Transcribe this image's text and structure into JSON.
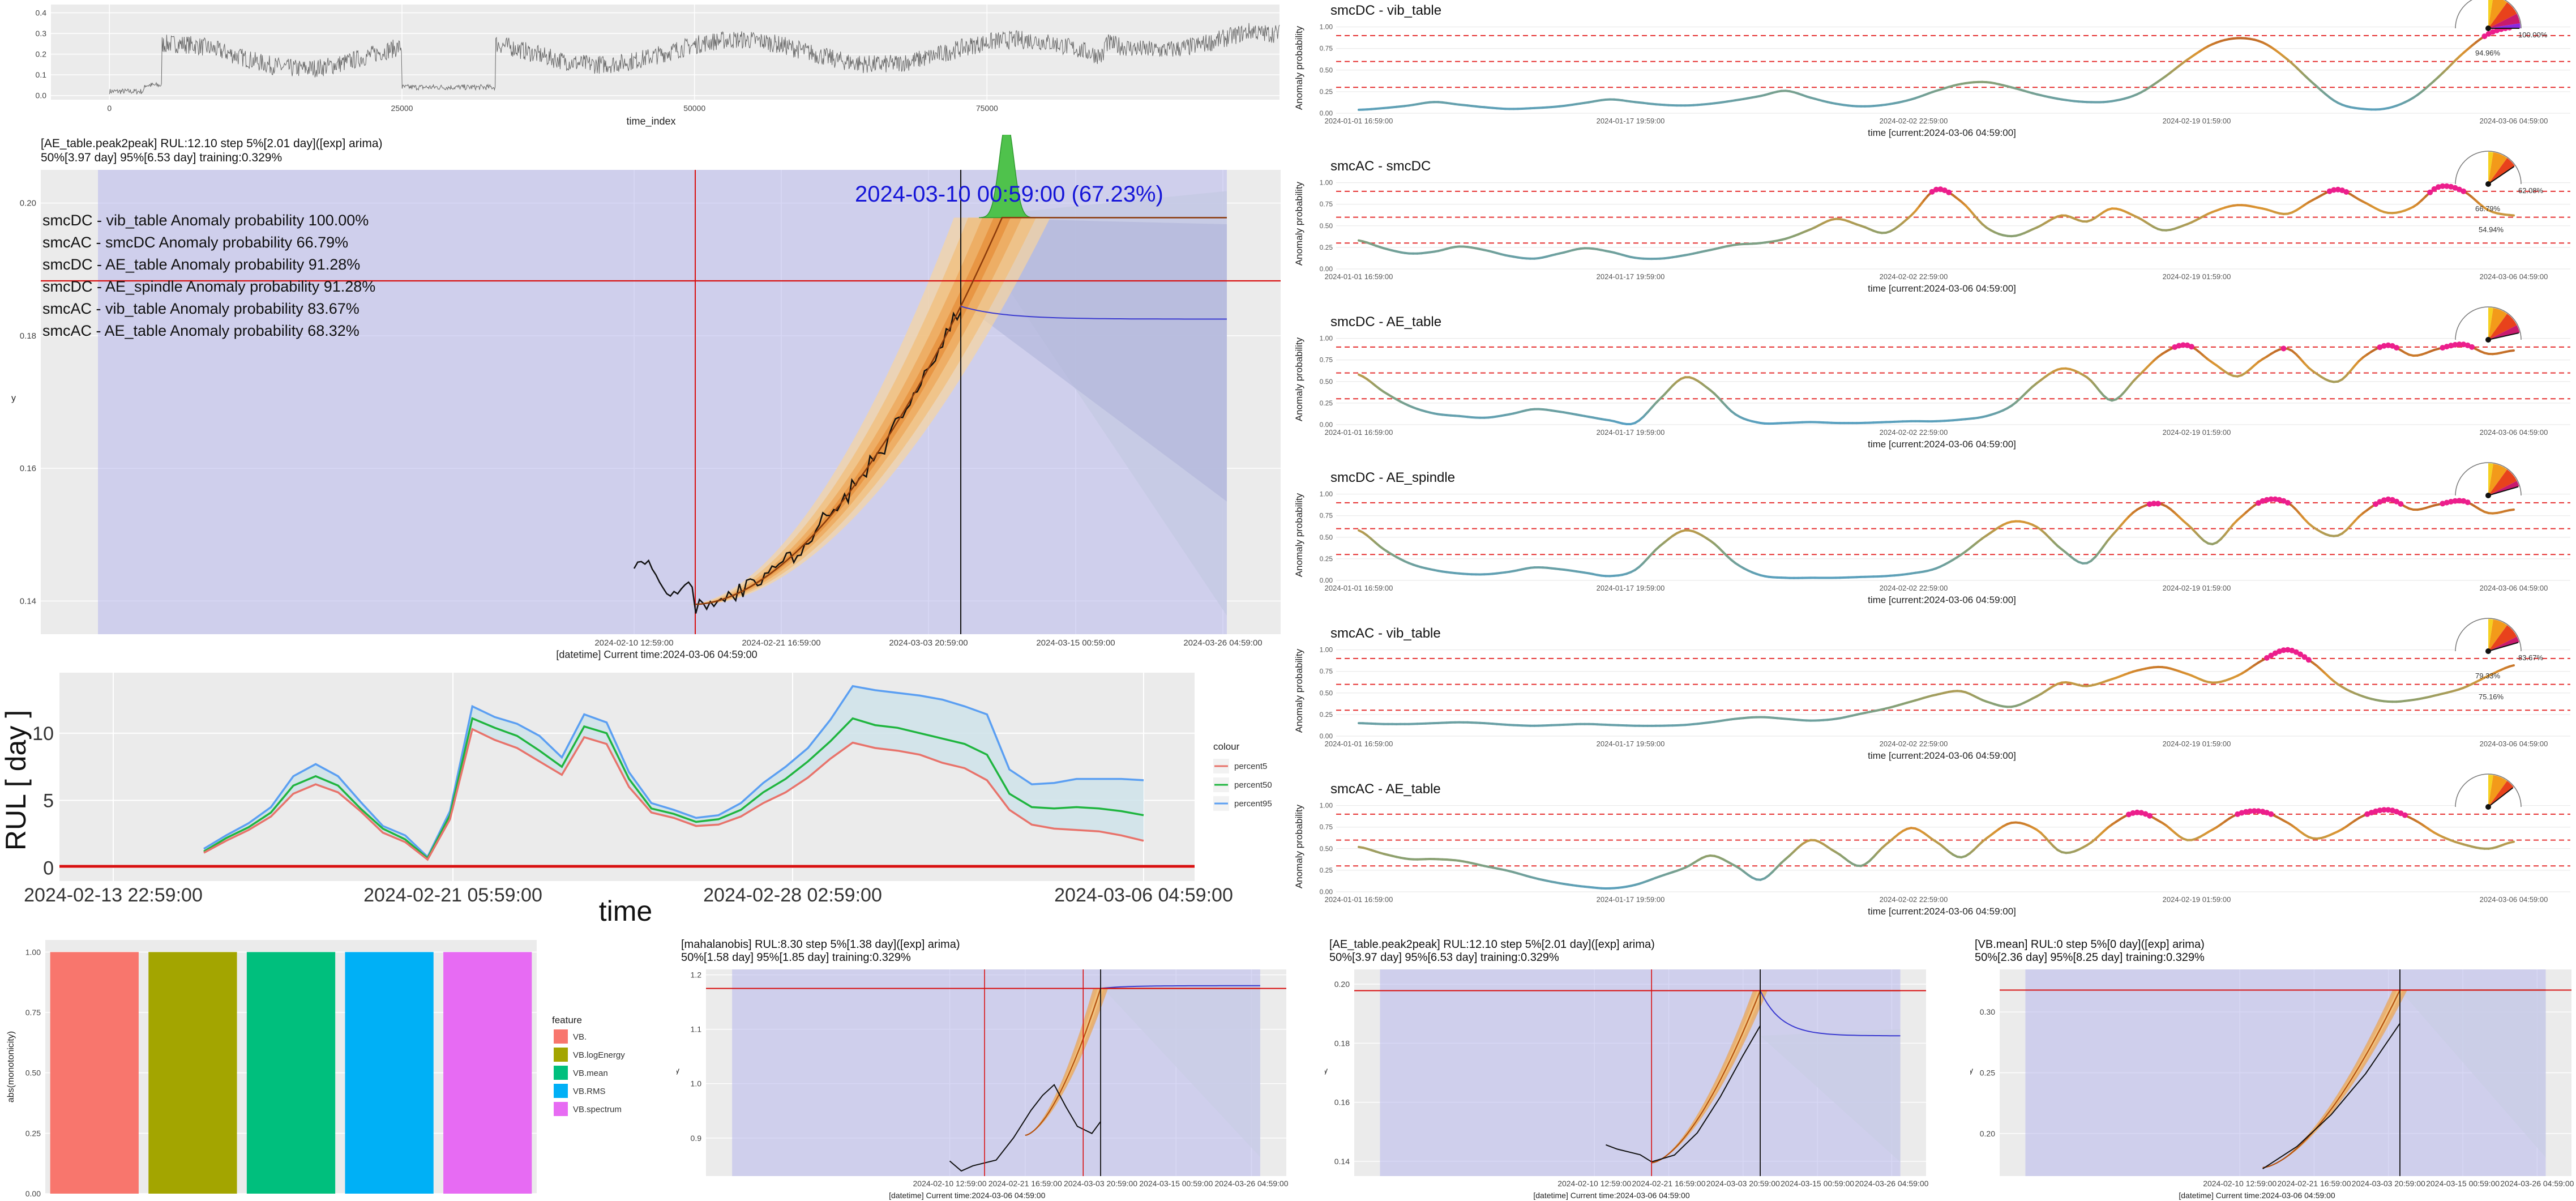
{
  "top_strip": {
    "xlabel": "time_index",
    "xticks": [
      0,
      25000,
      50000,
      75000
    ],
    "yticks": [
      "0.0",
      "0.1",
      "0.2",
      "0.3",
      "0.4"
    ],
    "xlim": [
      -5000,
      100000
    ],
    "ylim": [
      -0.02,
      0.44
    ]
  },
  "main_forecast": {
    "title_line1": "[AE_table.peak2peak] RUL:12.10 step 5%[2.01 day]([exp] arima)",
    "title_line2": "50%[3.97 day] 95%[6.53 day] training:0.329%",
    "big_label": "2024-03-10 00:59:00 (67.23%)",
    "anomaly_list": [
      "smcDC - vib_table Anomaly probability 100.00%",
      "smcAC - smcDC Anomaly probability 66.79%",
      "smcDC - AE_table Anomaly probability 91.28%",
      "smcDC - AE_spindle Anomaly probability 91.28%",
      "smcAC - vib_table Anomaly probability 83.67%",
      "smcAC - AE_table Anomaly probability 68.32%"
    ],
    "ylabel": "y",
    "yticks": [
      "0.14",
      "0.16",
      "0.18",
      "0.20"
    ],
    "xticks": [
      "2024-02-10 12:59:00",
      "2024-02-21 16:59:00",
      "2024-03-03 20:59:00",
      "2024-03-15 00:59:00",
      "2024-03-26 04:59:00"
    ],
    "xlabel": "[datetime] Current time:2024-03-06 04:59:00"
  },
  "rul_chart": {
    "ylabel": "RUL [ day ]",
    "xlabel": "time",
    "yticks": [
      "0",
      "5",
      "10"
    ],
    "xticks": [
      "2024-02-13 22:59:00",
      "2024-02-21 05:59:00",
      "2024-02-28 02:59:00",
      "2024-03-06 04:59:00"
    ],
    "legend_title": "colour",
    "legend": [
      "percent5",
      "percent50",
      "percent95"
    ],
    "colors": {
      "percent5": "#e8736b",
      "percent50": "#1fb53f",
      "percent95": "#5b9ff2"
    },
    "p5": [
      1.1,
      2.0,
      2.8,
      3.8,
      5.5,
      6.2,
      5.6,
      4.2,
      2.6,
      1.9,
      0.6,
      3.6,
      10.3,
      9.5,
      8.9,
      7.9,
      6.9,
      9.7,
      9.2,
      6.0,
      4.1,
      3.7,
      3.1,
      3.2,
      3.8,
      4.8,
      5.6,
      6.7,
      8.1,
      9.3,
      8.9,
      8.7,
      8.4,
      7.8,
      7.4,
      6.5,
      4.3,
      3.2,
      2.9,
      2.8,
      2.7,
      2.4,
      2.0
    ],
    "p50": [
      1.2,
      2.2,
      3.0,
      4.1,
      6.1,
      6.8,
      6.1,
      4.4,
      2.9,
      2.1,
      0.7,
      3.9,
      11.1,
      10.4,
      9.8,
      8.7,
      7.5,
      10.5,
      10.0,
      6.6,
      4.4,
      4.0,
      3.4,
      3.6,
      4.3,
      5.6,
      6.6,
      7.9,
      9.4,
      11.1,
      10.6,
      10.4,
      10.0,
      9.6,
      9.2,
      8.4,
      5.5,
      4.5,
      4.4,
      4.5,
      4.4,
      4.2,
      3.9
    ],
    "p95": [
      1.4,
      2.4,
      3.3,
      4.5,
      6.8,
      7.7,
      6.8,
      4.9,
      3.1,
      2.4,
      0.8,
      4.2,
      12.0,
      11.2,
      10.7,
      9.8,
      8.2,
      11.4,
      10.8,
      7.1,
      4.8,
      4.3,
      3.7,
      3.9,
      4.8,
      6.3,
      7.5,
      8.9,
      11.0,
      13.5,
      13.2,
      13.0,
      12.8,
      12.5,
      12.0,
      11.4,
      7.3,
      6.2,
      6.3,
      6.6,
      6.6,
      6.6,
      6.5
    ]
  },
  "bar_chart": {
    "ylabel": "abs(monotonicity)",
    "yticks": [
      "0.00",
      "0.25",
      "0.50",
      "0.75",
      "1.00"
    ],
    "legend_title": "feature",
    "categories": [
      "VB.",
      "VB.logEnergy",
      "VB.mean",
      "VB.RMS",
      "VB.spectrum"
    ],
    "values": [
      1.0,
      1.0,
      1.0,
      1.0,
      1.0
    ],
    "colors": [
      "#f8766d",
      "#a3a500",
      "#00bf7d",
      "#00b0f6",
      "#e76bf3"
    ]
  },
  "small_forecasts": [
    {
      "title_line1": "[mahalanobis] RUL:8.30 step 5%[1.38 day]([exp] arima)",
      "title_line2": "50%[1.58 day] 95%[1.85 day] training:0.329%",
      "ylabel": "y",
      "yticks": [
        "0.9",
        "1.0",
        "1.1",
        "1.2"
      ],
      "xticks": [
        "2024-02-10 12:59:00",
        "2024-02-21 16:59:00",
        "2024-03-03 20:59:00",
        "2024-03-15 00:59:00",
        "2024-03-26 04:59:00"
      ],
      "xlabel": "[datetime] Current time:2024-03-06 04:59:00"
    },
    {
      "title_line1": "[AE_table.peak2peak] RUL:12.10 step 5%[2.01 day]([exp] arima)",
      "title_line2": "50%[3.97 day] 95%[6.53 day] training:0.329%",
      "ylabel": "y",
      "yticks": [
        "0.14",
        "0.16",
        "0.18",
        "0.20"
      ],
      "xticks": [
        "2024-02-10 12:59:00",
        "2024-02-21 16:59:00",
        "2024-03-03 20:59:00",
        "2024-03-15 00:59:00",
        "2024-03-26 04:59:00"
      ],
      "xlabel": "[datetime] Current time:2024-03-06 04:59:00"
    },
    {
      "title_line1": "[VB.mean] RUL:0 step 5%[0 day]([exp] arima)",
      "title_line2": "50%[2.36 day] 95%[8.25 day] training:0.329%",
      "ylabel": "y",
      "yticks": [
        "0.20",
        "0.25",
        "0.30"
      ],
      "xticks": [
        "2024-02-10 12:59:00",
        "2024-02-21 16:59:00",
        "2024-03-03 20:59:00",
        "2024-03-15 00:59:00",
        "2024-03-26 04:59:00"
      ],
      "xlabel": "[datetime] Current time:2024-03-06 04:59:00"
    }
  ],
  "anomaly_panels": {
    "ylabel": "Anomaly probability",
    "yticks": [
      "0.00",
      "0.25",
      "0.50",
      "0.75",
      "1.00"
    ],
    "xticks": [
      "2024-01-01 16:59:00",
      "2024-01-17 19:59:00",
      "2024-02-02 22:59:00",
      "2024-02-19 01:59:00",
      "2024-03-06 04:59:00"
    ],
    "xlabel": "time [current:2024-03-06 04:59:00]",
    "panels": [
      {
        "title": "smcDC - vib_table",
        "gauge_labels": [
          "100.00%",
          "94.96%"
        ],
        "values": [
          0.04,
          0.06,
          0.09,
          0.13,
          0.1,
          0.07,
          0.05,
          0.06,
          0.08,
          0.12,
          0.16,
          0.13,
          0.1,
          0.09,
          0.11,
          0.15,
          0.2,
          0.26,
          0.18,
          0.11,
          0.08,
          0.1,
          0.16,
          0.26,
          0.34,
          0.36,
          0.3,
          0.22,
          0.16,
          0.13,
          0.14,
          0.22,
          0.4,
          0.62,
          0.8,
          0.87,
          0.82,
          0.62,
          0.35,
          0.12,
          0.05,
          0.06,
          0.18,
          0.42,
          0.7,
          0.92,
          1.0
        ]
      },
      {
        "title": "smcAC - smcDC",
        "gauge_labels": [
          "62.08%",
          "66.79%",
          "54.94%"
        ],
        "values": [
          0.33,
          0.24,
          0.18,
          0.2,
          0.26,
          0.22,
          0.15,
          0.12,
          0.18,
          0.24,
          0.2,
          0.13,
          0.12,
          0.16,
          0.22,
          0.28,
          0.3,
          0.35,
          0.46,
          0.58,
          0.5,
          0.42,
          0.62,
          0.92,
          0.78,
          0.48,
          0.38,
          0.48,
          0.62,
          0.55,
          0.7,
          0.6,
          0.45,
          0.52,
          0.66,
          0.74,
          0.7,
          0.64,
          0.8,
          0.92,
          0.78,
          0.65,
          0.72,
          0.95,
          0.9,
          0.68,
          0.62
        ]
      },
      {
        "title": "smcDC - AE_table",
        "gauge_labels": [],
        "values": [
          0.58,
          0.38,
          0.22,
          0.13,
          0.1,
          0.08,
          0.12,
          0.18,
          0.15,
          0.1,
          0.05,
          0.02,
          0.3,
          0.55,
          0.4,
          0.12,
          0.02,
          0.02,
          0.03,
          0.02,
          0.02,
          0.03,
          0.04,
          0.04,
          0.06,
          0.1,
          0.22,
          0.48,
          0.65,
          0.55,
          0.28,
          0.55,
          0.82,
          0.92,
          0.72,
          0.56,
          0.76,
          0.88,
          0.62,
          0.5,
          0.78,
          0.92,
          0.8,
          0.88,
          0.93,
          0.82,
          0.86
        ]
      },
      {
        "title": "smcDC - AE_spindle",
        "gauge_labels": [],
        "values": [
          0.58,
          0.36,
          0.2,
          0.12,
          0.08,
          0.07,
          0.1,
          0.15,
          0.13,
          0.09,
          0.05,
          0.12,
          0.4,
          0.58,
          0.46,
          0.2,
          0.06,
          0.03,
          0.03,
          0.03,
          0.04,
          0.05,
          0.08,
          0.14,
          0.3,
          0.52,
          0.68,
          0.62,
          0.36,
          0.2,
          0.52,
          0.82,
          0.88,
          0.65,
          0.42,
          0.7,
          0.92,
          0.9,
          0.62,
          0.52,
          0.78,
          0.94,
          0.82,
          0.88,
          0.92,
          0.78,
          0.82
        ]
      },
      {
        "title": "smcAC - vib_table",
        "gauge_labels": [
          "83.67%",
          "79.33%",
          "75.16%"
        ],
        "values": [
          0.15,
          0.14,
          0.14,
          0.15,
          0.16,
          0.15,
          0.13,
          0.12,
          0.13,
          0.14,
          0.13,
          0.12,
          0.12,
          0.13,
          0.16,
          0.2,
          0.22,
          0.2,
          0.18,
          0.2,
          0.26,
          0.32,
          0.4,
          0.48,
          0.52,
          0.4,
          0.34,
          0.46,
          0.62,
          0.58,
          0.66,
          0.76,
          0.8,
          0.72,
          0.62,
          0.7,
          0.88,
          1.0,
          0.85,
          0.6,
          0.46,
          0.4,
          0.42,
          0.48,
          0.56,
          0.7,
          0.82
        ]
      },
      {
        "title": "smcAC - AE_table",
        "gauge_labels": [],
        "values": [
          0.52,
          0.44,
          0.38,
          0.38,
          0.36,
          0.3,
          0.24,
          0.16,
          0.1,
          0.06,
          0.04,
          0.08,
          0.18,
          0.28,
          0.42,
          0.3,
          0.14,
          0.38,
          0.6,
          0.46,
          0.3,
          0.55,
          0.74,
          0.58,
          0.4,
          0.62,
          0.8,
          0.72,
          0.46,
          0.54,
          0.78,
          0.92,
          0.8,
          0.6,
          0.72,
          0.9,
          0.93,
          0.8,
          0.62,
          0.7,
          0.88,
          0.95,
          0.84,
          0.66,
          0.55,
          0.5,
          0.58
        ]
      }
    ]
  },
  "chart_data": [
    {
      "type": "line",
      "name": "time_index strip",
      "xlabel": "time_index",
      "xlim": [
        -5000,
        100000
      ],
      "ylim": [
        -0.02,
        0.44
      ]
    },
    {
      "type": "area",
      "name": "AE_table.peak2peak forecast",
      "xlabel": "[datetime] Current time:2024-03-06 04:59:00",
      "ylabel": "y",
      "ylim": [
        0.135,
        0.205
      ]
    },
    {
      "type": "line",
      "name": "RUL [ day ]",
      "ylabel": "RUL [ day ]",
      "xlabel": "time",
      "series": [
        {
          "name": "percent5"
        },
        {
          "name": "percent50"
        },
        {
          "name": "percent95"
        }
      ]
    },
    {
      "type": "bar",
      "ylabel": "abs(monotonicity)",
      "categories": [
        "VB.",
        "VB.logEnergy",
        "VB.mean",
        "VB.RMS",
        "VB.spectrum"
      ],
      "values": [
        1.0,
        1.0,
        1.0,
        1.0,
        1.0
      ],
      "ylim": [
        0,
        1.05
      ]
    },
    {
      "type": "line",
      "name": "Anomaly probability panels",
      "ylabel": "Anomaly probability",
      "ylim": [
        0,
        1.05
      ]
    }
  ]
}
